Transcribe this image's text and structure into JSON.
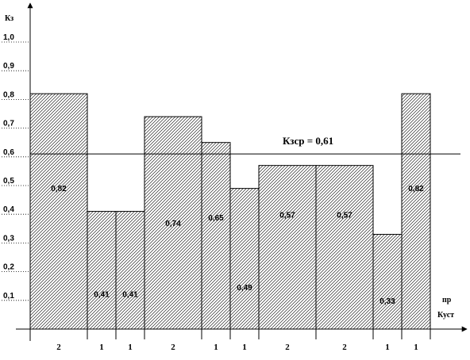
{
  "chart_data": {
    "type": "bar",
    "y_axis_label": "Кз",
    "x_axis_label_top": "пр",
    "x_axis_label_bottom": "Куст",
    "ylim": [
      0,
      1.1
    ],
    "y_ticks": [
      "0,1",
      "0,2",
      "0,3",
      "0,4",
      "0,5",
      "0,6",
      "0,7",
      "0,8",
      "0,9",
      "1,0"
    ],
    "y_tick_values": [
      0.1,
      0.2,
      0.3,
      0.4,
      0.5,
      0.6,
      0.7,
      0.8,
      0.9,
      1.0
    ],
    "bars": [
      {
        "width": 2,
        "value": 0.82,
        "label": "0,82",
        "weight_label": "2"
      },
      {
        "width": 1,
        "value": 0.41,
        "label": "0,41",
        "weight_label": "1"
      },
      {
        "width": 1,
        "value": 0.41,
        "label": "0,41",
        "weight_label": "1"
      },
      {
        "width": 2,
        "value": 0.74,
        "label": "0,74",
        "weight_label": "2"
      },
      {
        "width": 1,
        "value": 0.65,
        "label": "0,65",
        "weight_label": "1"
      },
      {
        "width": 1,
        "value": 0.49,
        "label": "0,49",
        "weight_label": "1"
      },
      {
        "width": 2,
        "value": 0.57,
        "label": "0,57",
        "weight_label": "2"
      },
      {
        "width": 2,
        "value": 0.57,
        "label": "0,57",
        "weight_label": "2"
      },
      {
        "width": 1,
        "value": 0.33,
        "label": "0,33",
        "weight_label": "1"
      },
      {
        "width": 1,
        "value": 0.82,
        "label": "0,82",
        "weight_label": "1"
      }
    ],
    "reference_line": {
      "value": 0.61,
      "label": "Кзср = 0,61"
    },
    "grid": false,
    "legend": "none",
    "colors": {
      "bar_fill_pattern": "diagonal-hatch",
      "stroke": "#000000",
      "background": "#ffffff"
    }
  }
}
